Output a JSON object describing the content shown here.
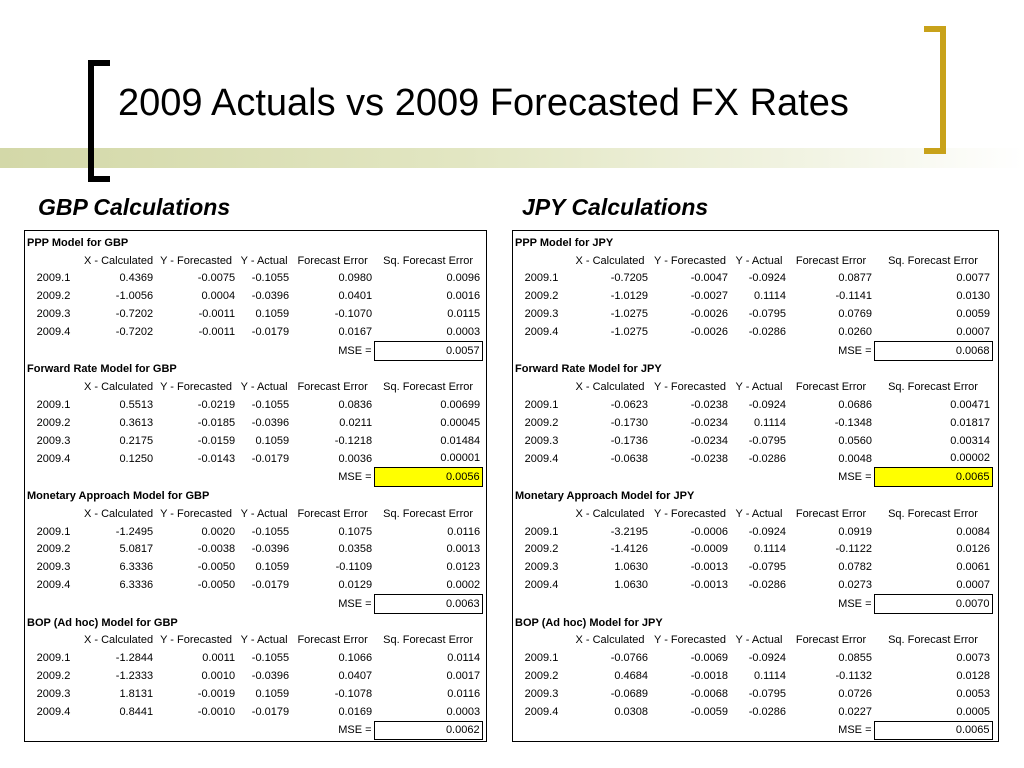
{
  "slide": {
    "title": "2009 Actuals vs 2009 Forecasted FX Rates"
  },
  "colors": {
    "accent_bracket": "#c8a21a",
    "highlight": "#ffff00",
    "title_band": "#d3d8a8"
  },
  "columns": [
    "X - Calculated",
    "Y - Forecasted",
    "Y - Actual",
    "Forecast Error",
    "Sq. Forecast Error"
  ],
  "mse_label": "MSE =",
  "panels": [
    {
      "heading": "GBP Calculations",
      "models": [
        {
          "title": "PPP Model for GBP",
          "rows": [
            [
              "2009.1",
              "0.4369",
              "-0.0075",
              "-0.1055",
              "0.0980",
              "0.0096"
            ],
            [
              "2009.2",
              "-1.0056",
              "0.0004",
              "-0.0396",
              "0.0401",
              "0.0016"
            ],
            [
              "2009.3",
              "-0.7202",
              "-0.0011",
              "0.1059",
              "-0.1070",
              "0.0115"
            ],
            [
              "2009.4",
              "-0.7202",
              "-0.0011",
              "-0.0179",
              "0.0167",
              "0.0003"
            ]
          ],
          "mse": "0.0057",
          "highlight": false
        },
        {
          "title": "Forward Rate Model for GBP",
          "rows": [
            [
              "2009.1",
              "0.5513",
              "-0.0219",
              "-0.1055",
              "0.0836",
              "0.00699"
            ],
            [
              "2009.2",
              "0.3613",
              "-0.0185",
              "-0.0396",
              "0.0211",
              "0.00045"
            ],
            [
              "2009.3",
              "0.2175",
              "-0.0159",
              "0.1059",
              "-0.1218",
              "0.01484"
            ],
            [
              "2009.4",
              "0.1250",
              "-0.0143",
              "-0.0179",
              "0.0036",
              "0.00001"
            ]
          ],
          "mse": "0.0056",
          "highlight": true
        },
        {
          "title": "Monetary Approach Model for GBP",
          "rows": [
            [
              "2009.1",
              "-1.2495",
              "0.0020",
              "-0.1055",
              "0.1075",
              "0.0116"
            ],
            [
              "2009.2",
              "5.0817",
              "-0.0038",
              "-0.0396",
              "0.0358",
              "0.0013"
            ],
            [
              "2009.3",
              "6.3336",
              "-0.0050",
              "0.1059",
              "-0.1109",
              "0.0123"
            ],
            [
              "2009.4",
              "6.3336",
              "-0.0050",
              "-0.0179",
              "0.0129",
              "0.0002"
            ]
          ],
          "mse": "0.0063",
          "highlight": false
        },
        {
          "title": "BOP (Ad hoc) Model for GBP",
          "rows": [
            [
              "2009.1",
              "-1.2844",
              "0.0011",
              "-0.1055",
              "0.1066",
              "0.0114"
            ],
            [
              "2009.2",
              "-1.2333",
              "0.0010",
              "-0.0396",
              "0.0407",
              "0.0017"
            ],
            [
              "2009.3",
              "1.8131",
              "-0.0019",
              "0.1059",
              "-0.1078",
              "0.0116"
            ],
            [
              "2009.4",
              "0.8441",
              "-0.0010",
              "-0.0179",
              "0.0169",
              "0.0003"
            ]
          ],
          "mse": "0.0062",
          "highlight": false
        }
      ]
    },
    {
      "heading": "JPY Calculations",
      "models": [
        {
          "title": "PPP Model for JPY",
          "rows": [
            [
              "2009.1",
              "-0.7205",
              "-0.0047",
              "-0.0924",
              "0.0877",
              "0.0077"
            ],
            [
              "2009.2",
              "-1.0129",
              "-0.0027",
              "0.1114",
              "-0.1141",
              "0.0130"
            ],
            [
              "2009.3",
              "-1.0275",
              "-0.0026",
              "-0.0795",
              "0.0769",
              "0.0059"
            ],
            [
              "2009.4",
              "-1.0275",
              "-0.0026",
              "-0.0286",
              "0.0260",
              "0.0007"
            ]
          ],
          "mse": "0.0068",
          "highlight": false
        },
        {
          "title": "Forward Rate Model for JPY",
          "rows": [
            [
              "2009.1",
              "-0.0623",
              "-0.0238",
              "-0.0924",
              "0.0686",
              "0.00471"
            ],
            [
              "2009.2",
              "-0.1730",
              "-0.0234",
              "0.1114",
              "-0.1348",
              "0.01817"
            ],
            [
              "2009.3",
              "-0.1736",
              "-0.0234",
              "-0.0795",
              "0.0560",
              "0.00314"
            ],
            [
              "2009.4",
              "-0.0638",
              "-0.0238",
              "-0.0286",
              "0.0048",
              "0.00002"
            ]
          ],
          "mse": "0.0065",
          "highlight": true
        },
        {
          "title": "Monetary Approach Model for JPY",
          "rows": [
            [
              "2009.1",
              "-3.2195",
              "-0.0006",
              "-0.0924",
              "0.0919",
              "0.0084"
            ],
            [
              "2009.2",
              "-1.4126",
              "-0.0009",
              "0.1114",
              "-0.1122",
              "0.0126"
            ],
            [
              "2009.3",
              "1.0630",
              "-0.0013",
              "-0.0795",
              "0.0782",
              "0.0061"
            ],
            [
              "2009.4",
              "1.0630",
              "-0.0013",
              "-0.0286",
              "0.0273",
              "0.0007"
            ]
          ],
          "mse": "0.0070",
          "highlight": false
        },
        {
          "title": "BOP (Ad hoc) Model for JPY",
          "rows": [
            [
              "2009.1",
              "-0.0766",
              "-0.0069",
              "-0.0924",
              "0.0855",
              "0.0073"
            ],
            [
              "2009.2",
              "0.4684",
              "-0.0018",
              "0.1114",
              "-0.1132",
              "0.0128"
            ],
            [
              "2009.3",
              "-0.0689",
              "-0.0068",
              "-0.0795",
              "0.0726",
              "0.0053"
            ],
            [
              "2009.4",
              "0.0308",
              "-0.0059",
              "-0.0286",
              "0.0227",
              "0.0005"
            ]
          ],
          "mse": "0.0065",
          "highlight": false
        }
      ]
    }
  ]
}
